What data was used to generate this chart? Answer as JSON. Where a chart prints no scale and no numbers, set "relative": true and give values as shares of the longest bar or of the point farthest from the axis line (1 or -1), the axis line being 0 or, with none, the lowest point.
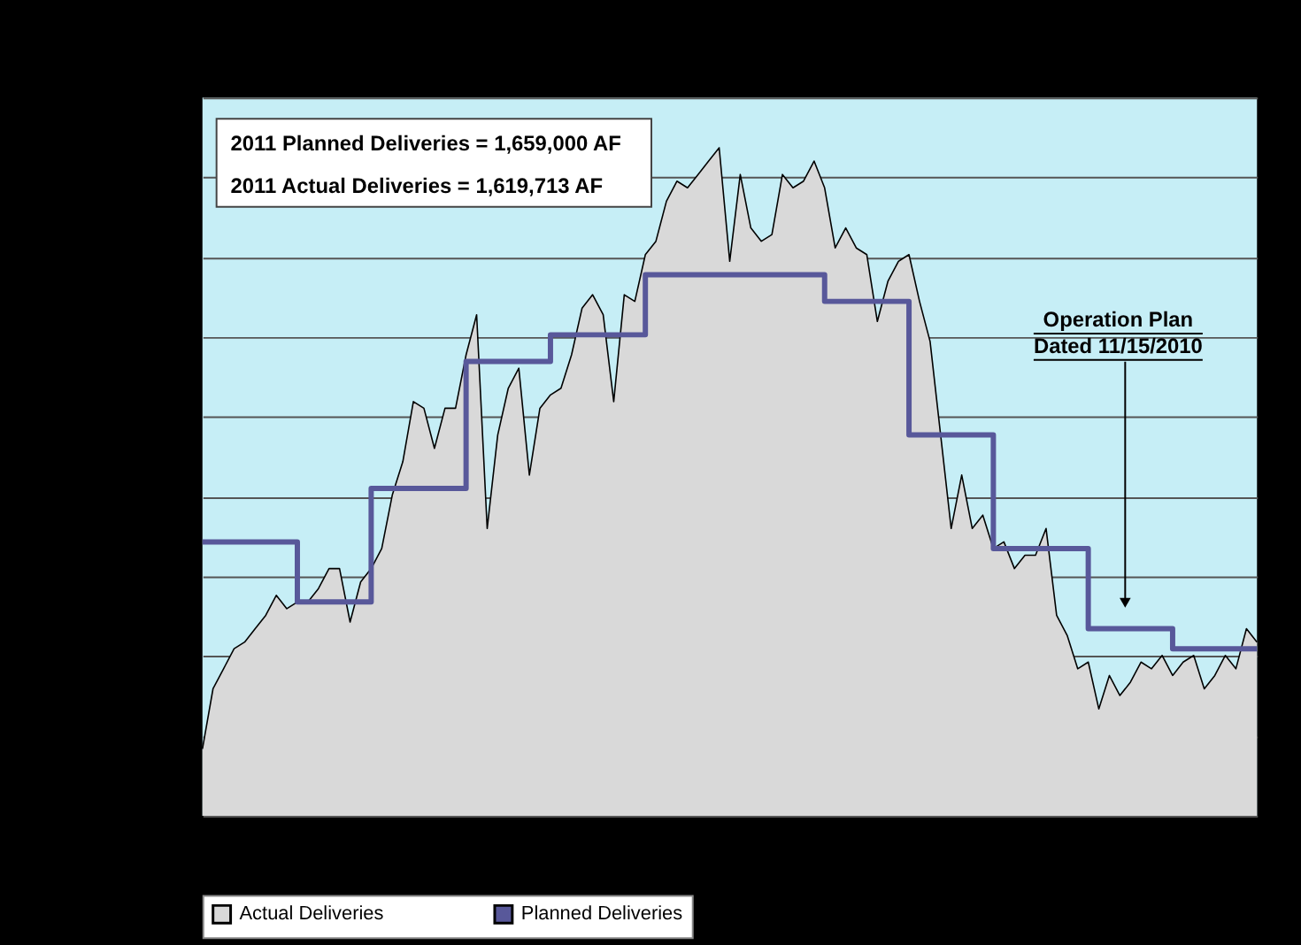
{
  "chart_data": {
    "type": "area",
    "relative": true,
    "grid": "y",
    "legend": "bottom",
    "categories": [
      null,
      null,
      null,
      null,
      null,
      null,
      null,
      null,
      null,
      null,
      null,
      null,
      null,
      null,
      null,
      null,
      null,
      null,
      null,
      null,
      null,
      null,
      null,
      null,
      null,
      null,
      null,
      null,
      null,
      null,
      null,
      null,
      null,
      null,
      null,
      null,
      null,
      null,
      null,
      null,
      null,
      null,
      null,
      null,
      null,
      null,
      null,
      null,
      null,
      null,
      null,
      null,
      null,
      null,
      null,
      null,
      null,
      null,
      null,
      null,
      null,
      null,
      null,
      null,
      null,
      null,
      null,
      null,
      null,
      null,
      null,
      null,
      null,
      null,
      null,
      null,
      null,
      null,
      null,
      null,
      null,
      null,
      null,
      null,
      null,
      null,
      null,
      null,
      null,
      null,
      null,
      null,
      null,
      null,
      null,
      null,
      null,
      null,
      null,
      null,
      null
    ],
    "series": [
      {
        "name": "Actual Deliveries",
        "color": "#d9d9d9",
        "values": [
          0.1,
          0.19,
          0.22,
          0.25,
          0.26,
          0.28,
          0.3,
          0.33,
          0.31,
          0.32,
          0.32,
          0.34,
          0.37,
          0.37,
          0.29,
          0.35,
          0.37,
          0.4,
          0.48,
          0.53,
          0.62,
          0.61,
          0.55,
          0.61,
          0.61,
          0.69,
          0.75,
          0.43,
          0.57,
          0.64,
          0.67,
          0.51,
          0.61,
          0.63,
          0.64,
          0.69,
          0.76,
          0.78,
          0.75,
          0.62,
          0.78,
          0.77,
          0.84,
          0.86,
          0.92,
          0.95,
          0.94,
          0.96,
          0.98,
          1.0,
          0.83,
          0.96,
          0.88,
          0.86,
          0.87,
          0.96,
          0.94,
          0.95,
          0.98,
          0.94,
          0.85,
          0.88,
          0.85,
          0.84,
          0.74,
          0.8,
          0.83,
          0.84,
          0.77,
          0.71,
          0.57,
          0.43,
          0.51,
          0.43,
          0.45,
          0.4,
          0.41,
          0.37,
          0.39,
          0.39,
          0.43,
          0.3,
          0.27,
          0.22,
          0.23,
          0.16,
          0.21,
          0.18,
          0.2,
          0.23,
          0.22,
          0.24,
          0.21,
          0.23,
          0.24,
          0.19,
          0.21,
          0.24,
          0.22,
          0.28,
          0.26
        ]
      },
      {
        "name": "Planned Deliveries",
        "type": "step",
        "color": "#58589a",
        "values": [
          0.41,
          0.41,
          0.41,
          0.41,
          0.41,
          0.41,
          0.41,
          0.41,
          0.41,
          0.32,
          0.32,
          0.32,
          0.32,
          0.32,
          0.32,
          0.32,
          0.49,
          0.49,
          0.49,
          0.49,
          0.49,
          0.49,
          0.49,
          0.49,
          0.49,
          0.68,
          0.68,
          0.68,
          0.68,
          0.68,
          0.68,
          0.68,
          0.68,
          0.72,
          0.72,
          0.72,
          0.72,
          0.72,
          0.72,
          0.72,
          0.72,
          0.72,
          0.81,
          0.81,
          0.81,
          0.81,
          0.81,
          0.81,
          0.81,
          0.81,
          0.81,
          0.81,
          0.81,
          0.81,
          0.81,
          0.81,
          0.81,
          0.81,
          0.81,
          0.77,
          0.77,
          0.77,
          0.77,
          0.77,
          0.77,
          0.77,
          0.77,
          0.57,
          0.57,
          0.57,
          0.57,
          0.57,
          0.57,
          0.57,
          0.57,
          0.4,
          0.4,
          0.4,
          0.4,
          0.4,
          0.4,
          0.4,
          0.4,
          0.4,
          0.28,
          0.28,
          0.28,
          0.28,
          0.28,
          0.28,
          0.28,
          0.28,
          0.25,
          0.25,
          0.25,
          0.25,
          0.25,
          0.25,
          0.25,
          0.25,
          0.25
        ]
      }
    ],
    "annotations": [
      "2011 Planned Deliveries = 1,659,000 AF",
      "2011 Actual Deliveries = 1,619,713 AF",
      "Operation Plan",
      "Dated 11/15/2010"
    ]
  }
}
